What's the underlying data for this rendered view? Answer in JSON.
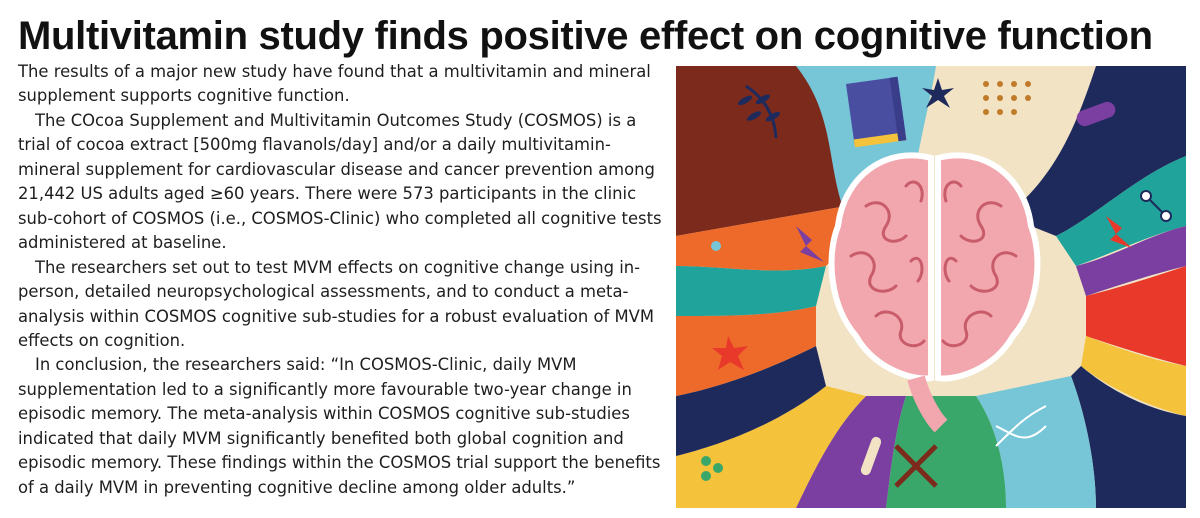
{
  "article": {
    "headline": "Multivitamin study finds positive effect on cognitive function",
    "paragraphs": [
      "The results of a major new study have found that a multivitamin and mineral supplement supports cognitive function.",
      "The COcoa Supplement and Multivitamin Outcomes Study (COSMOS) is a trial of cocoa extract [500mg flavanols/day] and/or a daily multivitamin-mineral supplement for cardiovascular disease and cancer prevention among 21,442 US adults aged ≥60 years. There were 573 participants in the clinic sub-cohort of COSMOS (i.e., COSMOS-Clinic) who completed all cognitive tests administered at baseline.",
      "The researchers set out to test MVM effects on cognitive change using in-person, detailed neuropsychological assessments, and to conduct a meta-analysis within COSMOS cognitive sub-studies for a robust evaluation of MVM effects on cognition.",
      "In conclusion, the researchers said: “In COSMOS-Clinic, daily MVM supplementation led to a significantly more favourable two-year change in episodic memory. The meta-analysis within COSMOS cognitive sub-studies indicated that daily MVM significantly benefited both global cognition and episodic memory. These findings within the COSMOS trial support the benefits of a daily MVM in preventing cognitive decline among older adults.”"
    ]
  },
  "illustration": {
    "subject": "brain-illustration",
    "colors": {
      "brain": "#f2a6ad",
      "brain_outline": "#ffffff",
      "navy": "#1f2a5c",
      "teal": "#1fa39a",
      "orange": "#ee6a2a",
      "red": "#e8392b",
      "yellow": "#f4c23b",
      "purple": "#7a3fa0",
      "maroon": "#7c2a1c",
      "sky": "#76c6d8",
      "cream": "#f1e3c4",
      "green": "#3aa76a"
    }
  }
}
